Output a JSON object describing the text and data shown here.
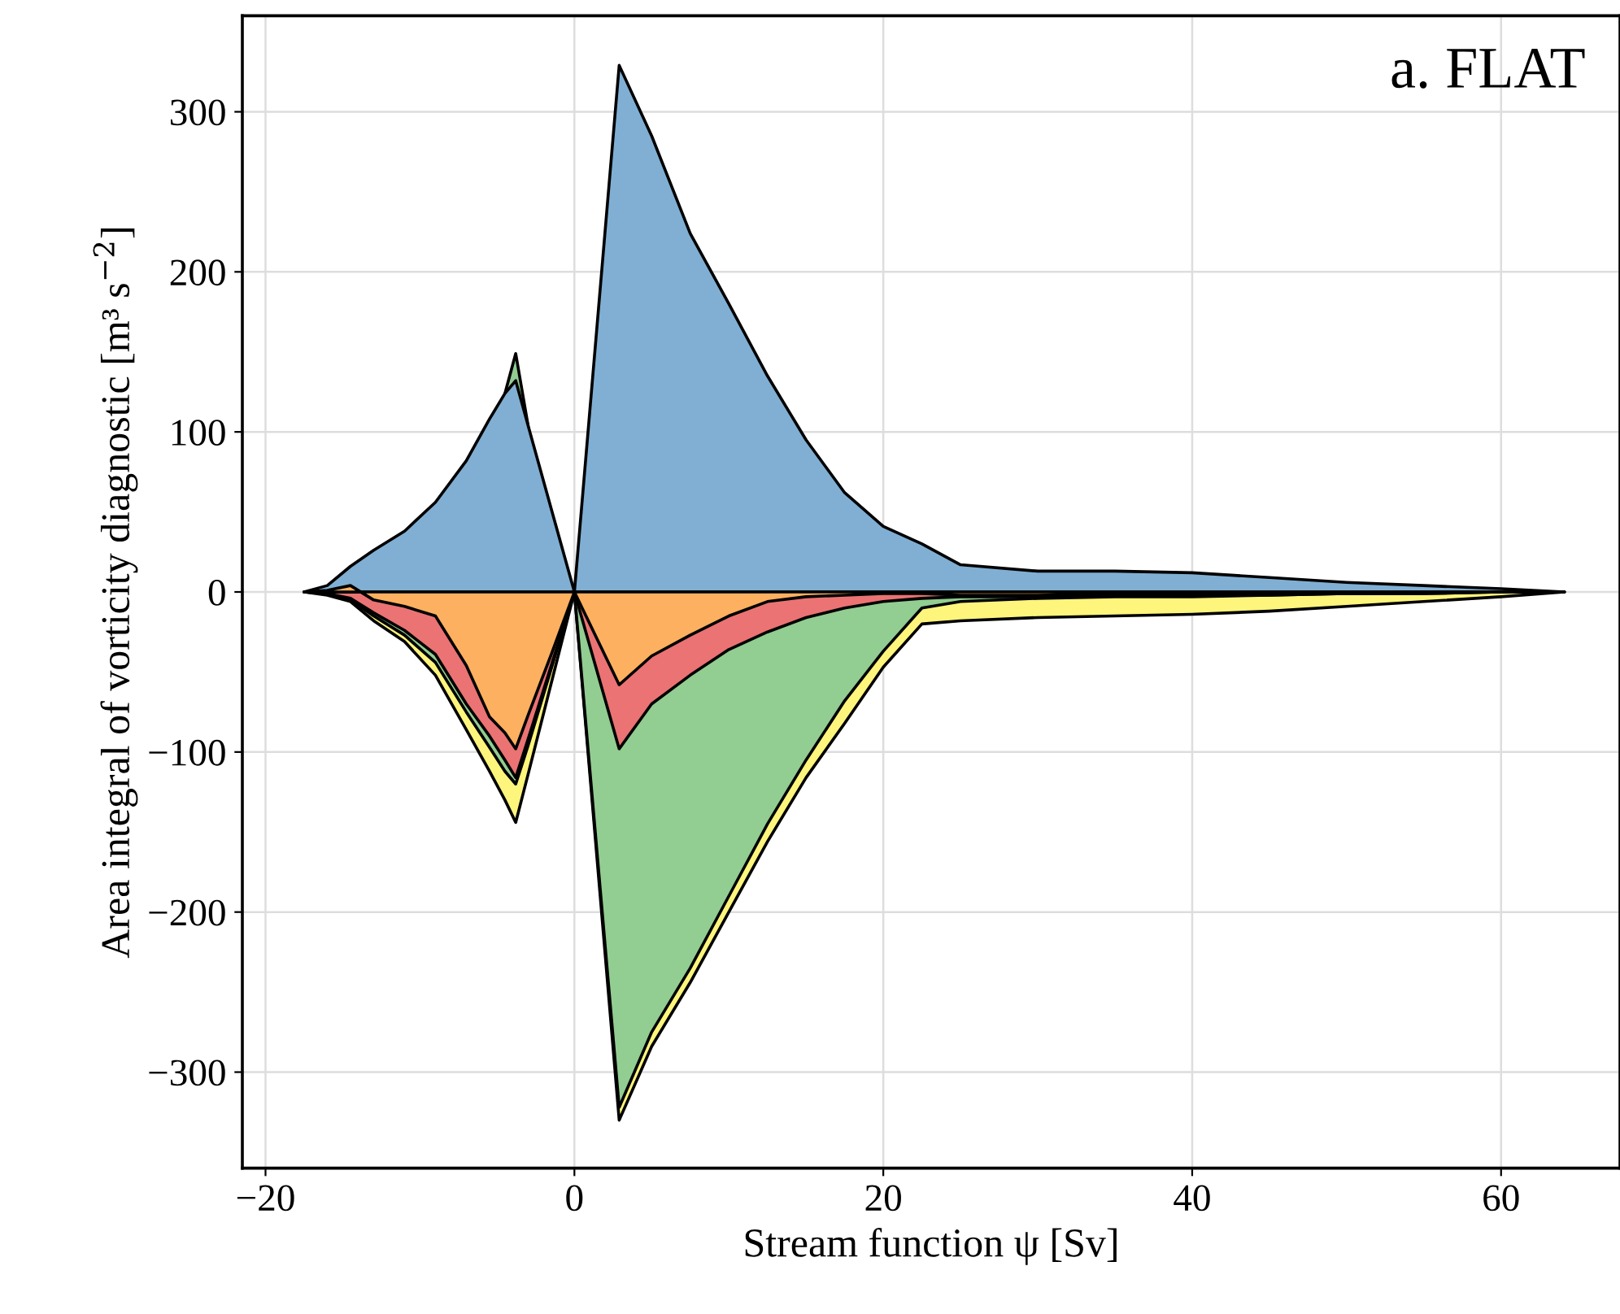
{
  "chart_data": {
    "type": "area",
    "xlabel": "Stream function ψ [Sv]",
    "ylabel": "Area integral of vorticity diagnostic [m³ s$^{−2}$]",
    "annotations": [
      "a. FLAT"
    ],
    "x": [
      -17.5,
      -16,
      -14.5,
      -13,
      -11,
      -9,
      -7,
      -5.5,
      -4.5,
      -3.8,
      -3,
      -1.5,
      0,
      2.9,
      5,
      7.5,
      10,
      12.5,
      15,
      17.5,
      20,
      22.5,
      25,
      30,
      35,
      40,
      45,
      50,
      55,
      60,
      64.1
    ],
    "series": [
      {
        "color": "#92cd91",
        "values": [
          null,
          null,
          null,
          null,
          null,
          null,
          null,
          null,
          124,
          149,
          104,
          null,
          null,
          null,
          null,
          null,
          null,
          null,
          null,
          null,
          null,
          null,
          null,
          null,
          null,
          null,
          null,
          null,
          null,
          null,
          null
        ]
      },
      {
        "color": "#fdf57c",
        "values": [
          0,
          -2,
          -6,
          -18,
          -31,
          -52,
          -86,
          -112,
          -130,
          -144,
          -114,
          -57,
          0,
          -330,
          -284,
          -244,
          -200,
          -156,
          -116,
          -82,
          -47,
          -20,
          -18,
          -16,
          -15,
          -14,
          -12,
          -9,
          -6,
          -3,
          0
        ]
      },
      {
        "color": "#92cd91",
        "values": [
          0,
          -1,
          -5,
          -15,
          -27,
          -44,
          -75,
          -97,
          -112,
          -120,
          -96,
          -48,
          0,
          -322,
          -275,
          -235,
          -190,
          -145,
          -105,
          -68,
          -37,
          -10,
          -6,
          -4,
          -3,
          -3,
          -2,
          -1,
          -1,
          0,
          0
        ]
      },
      {
        "color": "#eb7373",
        "values": [
          0,
          -1,
          -4,
          -13,
          -24,
          -39,
          -70,
          -90,
          -105,
          -116,
          -92,
          -46,
          0,
          -98,
          -70,
          -52,
          -36,
          -25,
          -16,
          -10,
          -6,
          -4,
          -3,
          -3,
          -2,
          -2,
          -2,
          -1,
          -1,
          0,
          0
        ]
      },
      {
        "color": "#80afd3",
        "values": [
          0,
          4,
          16,
          26,
          38,
          56,
          82,
          108,
          124,
          132,
          104,
          52,
          0,
          329,
          285,
          224,
          180,
          135,
          95,
          62,
          41,
          30,
          17,
          13,
          13,
          12,
          9,
          6,
          4,
          2,
          0
        ]
      },
      {
        "color": "#fdb05f",
        "values": [
          0,
          1,
          4,
          -5,
          -9,
          -15,
          -46,
          -78,
          -88,
          -98,
          -77,
          -39,
          0,
          -58,
          -40,
          -27,
          -15,
          -6,
          -3,
          -2,
          -1,
          -1,
          -2,
          -2,
          -1,
          -1,
          -1,
          -1,
          0,
          0,
          0
        ]
      }
    ],
    "xlim": [
      -21.5,
      67.7
    ],
    "ylim": [
      -360,
      360
    ],
    "xticks": [
      {
        "value": -20,
        "label": "−20"
      },
      0,
      20,
      40,
      60
    ],
    "yticks": [
      {
        "value": -300,
        "label": "−300"
      },
      {
        "value": -200,
        "label": "−200"
      },
      {
        "value": -100,
        "label": "−100"
      },
      0,
      100,
      200,
      300
    ],
    "grid": true
  }
}
